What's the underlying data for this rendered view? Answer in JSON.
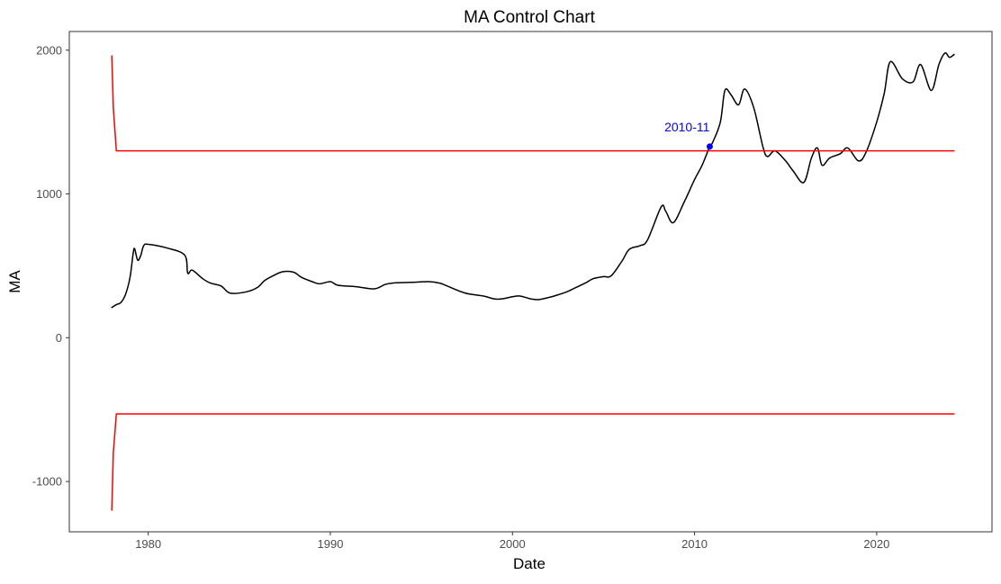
{
  "chart_data": {
    "type": "line",
    "title": "MA Control Chart",
    "xlabel": "Date",
    "ylabel": "MA",
    "x_axis_type": "date",
    "xlim": [
      "1975-09-01",
      "2026-05-01"
    ],
    "ylim": [
      -1350,
      2130
    ],
    "x_ticks": [
      {
        "value": "1980-01-01",
        "label": "1980"
      },
      {
        "value": "1990-01-01",
        "label": "1990"
      },
      {
        "value": "2000-01-01",
        "label": "2000"
      },
      {
        "value": "2010-01-01",
        "label": "2010"
      },
      {
        "value": "2020-01-01",
        "label": "2020"
      }
    ],
    "y_ticks": [
      {
        "value": 2000,
        "label": "2000"
      },
      {
        "value": 1000,
        "label": "1000"
      },
      {
        "value": 0,
        "label": "0"
      },
      {
        "value": -1000,
        "label": "-1000"
      }
    ],
    "grid": false,
    "panel_border": true,
    "colors": {
      "ma_line": "#000000",
      "control_limits": "#ff0000",
      "highlight": "#0000ff",
      "tick_text": "#4d4d4d",
      "axis": "#333333"
    },
    "series": [
      {
        "role": "ma",
        "points": [
          [
            "1978-01",
            210
          ],
          [
            "1978-04",
            230
          ],
          [
            "1978-07",
            245
          ],
          [
            "1978-10",
            300
          ],
          [
            "1979-01",
            420
          ],
          [
            "1979-03",
            580
          ],
          [
            "1979-04",
            620
          ],
          [
            "1979-06",
            540
          ],
          [
            "1979-08",
            570
          ],
          [
            "1979-10",
            640
          ],
          [
            "1980-01",
            650
          ],
          [
            "1981-01",
            625
          ],
          [
            "1982-01",
            575
          ],
          [
            "1982-03",
            450
          ],
          [
            "1982-06",
            470
          ],
          [
            "1983-01",
            410
          ],
          [
            "1983-06",
            380
          ],
          [
            "1984-01",
            360
          ],
          [
            "1984-07",
            310
          ],
          [
            "1985-06",
            320
          ],
          [
            "1986-01",
            350
          ],
          [
            "1986-06",
            400
          ],
          [
            "1987-01",
            440
          ],
          [
            "1987-06",
            460
          ],
          [
            "1988-01",
            455
          ],
          [
            "1988-06",
            420
          ],
          [
            "1989-01",
            390
          ],
          [
            "1989-06",
            375
          ],
          [
            "1990-01",
            390
          ],
          [
            "1990-06",
            365
          ],
          [
            "1991-06",
            355
          ],
          [
            "1992-06",
            340
          ],
          [
            "1993-01",
            370
          ],
          [
            "1993-06",
            380
          ],
          [
            "1994-06",
            385
          ],
          [
            "1995-06",
            390
          ],
          [
            "1996-01",
            380
          ],
          [
            "1996-06",
            360
          ],
          [
            "1997-06",
            310
          ],
          [
            "1998-06",
            290
          ],
          [
            "1999-01",
            270
          ],
          [
            "1999-06",
            270
          ],
          [
            "2000-01",
            285
          ],
          [
            "2000-06",
            290
          ],
          [
            "2001-01",
            270
          ],
          [
            "2001-06",
            265
          ],
          [
            "2002-01",
            280
          ],
          [
            "2002-06",
            295
          ],
          [
            "2003-01",
            320
          ],
          [
            "2003-06",
            345
          ],
          [
            "2004-01",
            380
          ],
          [
            "2004-06",
            410
          ],
          [
            "2005-01",
            425
          ],
          [
            "2005-06",
            430
          ],
          [
            "2006-01",
            530
          ],
          [
            "2006-06",
            615
          ],
          [
            "2007-01",
            640
          ],
          [
            "2007-06",
            680
          ],
          [
            "2008-03",
            910
          ],
          [
            "2008-06",
            880
          ],
          [
            "2008-11",
            800
          ],
          [
            "2009-06",
            940
          ],
          [
            "2010-01",
            1100
          ],
          [
            "2010-06",
            1200
          ],
          [
            "2010-11",
            1330
          ],
          [
            "2011-01",
            1360
          ],
          [
            "2011-06",
            1500
          ],
          [
            "2011-09",
            1720
          ],
          [
            "2012-01",
            1690
          ],
          [
            "2012-06",
            1620
          ],
          [
            "2012-10",
            1730
          ],
          [
            "2013-04",
            1600
          ],
          [
            "2013-10",
            1330
          ],
          [
            "2014-01",
            1260
          ],
          [
            "2014-06",
            1300
          ],
          [
            "2015-01",
            1230
          ],
          [
            "2015-06",
            1160
          ],
          [
            "2016-01",
            1080
          ],
          [
            "2016-06",
            1250
          ],
          [
            "2016-10",
            1320
          ],
          [
            "2017-01",
            1200
          ],
          [
            "2017-06",
            1250
          ],
          [
            "2018-01",
            1280
          ],
          [
            "2018-06",
            1320
          ],
          [
            "2019-01",
            1230
          ],
          [
            "2019-06",
            1290
          ],
          [
            "2020-01",
            1500
          ],
          [
            "2020-06",
            1700
          ],
          [
            "2020-10",
            1920
          ],
          [
            "2021-06",
            1800
          ],
          [
            "2022-01",
            1780
          ],
          [
            "2022-06",
            1900
          ],
          [
            "2023-01",
            1720
          ],
          [
            "2023-06",
            1900
          ],
          [
            "2023-10",
            1980
          ],
          [
            "2024-01",
            1950
          ],
          [
            "2024-04",
            1970
          ]
        ]
      },
      {
        "role": "upper_control_limit",
        "points": [
          [
            "1978-01",
            1960
          ],
          [
            "1978-02",
            1600
          ],
          [
            "1978-04",
            1300
          ],
          [
            "2024-04",
            1300
          ]
        ]
      },
      {
        "role": "lower_control_limit",
        "points": [
          [
            "1978-01",
            -1200
          ],
          [
            "1978-02",
            -800
          ],
          [
            "1978-04",
            -530
          ],
          [
            "2024-04",
            -530
          ]
        ]
      }
    ],
    "highlight_points": [
      {
        "x": "2010-11",
        "y": 1330,
        "label": "2010-11"
      }
    ]
  }
}
